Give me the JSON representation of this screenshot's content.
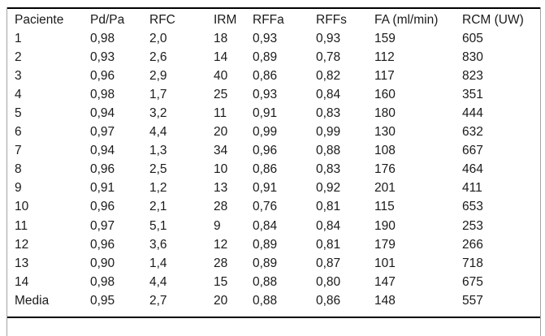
{
  "table": {
    "columns": [
      "Paciente",
      "Pd/Pa",
      "RFC",
      "IRM",
      "RFFa",
      "RFFs",
      "FA (ml/min)",
      "RCM (UW)"
    ],
    "rows": [
      [
        "1",
        "0,98",
        "2,0",
        "18",
        "0,93",
        "0,93",
        "159",
        "605"
      ],
      [
        "2",
        "0,93",
        "2,6",
        "14",
        "0,89",
        "0,78",
        "112",
        "830"
      ],
      [
        "3",
        "0,96",
        "2,9",
        "40",
        "0,86",
        "0,82",
        "117",
        "823"
      ],
      [
        "4",
        "0,98",
        "1,7",
        "25",
        "0,93",
        "0,84",
        "160",
        "351"
      ],
      [
        "5",
        "0,94",
        "3,2",
        "11",
        "0,91",
        "0,83",
        "180",
        "444"
      ],
      [
        "6",
        "0,97",
        "4,4",
        "20",
        "0,99",
        "0,99",
        "130",
        "632"
      ],
      [
        "7",
        "0,94",
        "1,3",
        "34",
        "0,96",
        "0,88",
        "108",
        "667"
      ],
      [
        "8",
        "0,96",
        "2,5",
        "10",
        "0,86",
        "0,83",
        "176",
        "464"
      ],
      [
        "9",
        "0,91",
        "1,2",
        "13",
        "0,91",
        "0,92",
        "201",
        "411"
      ],
      [
        "10",
        "0,96",
        "2,1",
        "28",
        "0,76",
        "0,81",
        "115",
        "653"
      ],
      [
        "11",
        "0,97",
        "5,1",
        "9",
        "0,84",
        "0,84",
        "190",
        "253"
      ],
      [
        "12",
        "0,96",
        "3,6",
        "12",
        "0,89",
        "0,81",
        "179",
        "266"
      ],
      [
        "13",
        "0,90",
        "1,4",
        "28",
        "0,89",
        "0,87",
        "101",
        "718"
      ],
      [
        "14",
        "0,98",
        "4,4",
        "15",
        "0,88",
        "0,80",
        "147",
        "675"
      ],
      [
        "Media",
        "0,95",
        "2,7",
        "20",
        "0,88",
        "0,86",
        "148",
        "557"
      ]
    ]
  },
  "colors": {
    "text": "#1a1a1a",
    "rule": "#000000",
    "frame_border": "#a3a3a3",
    "background": "#ffffff"
  }
}
